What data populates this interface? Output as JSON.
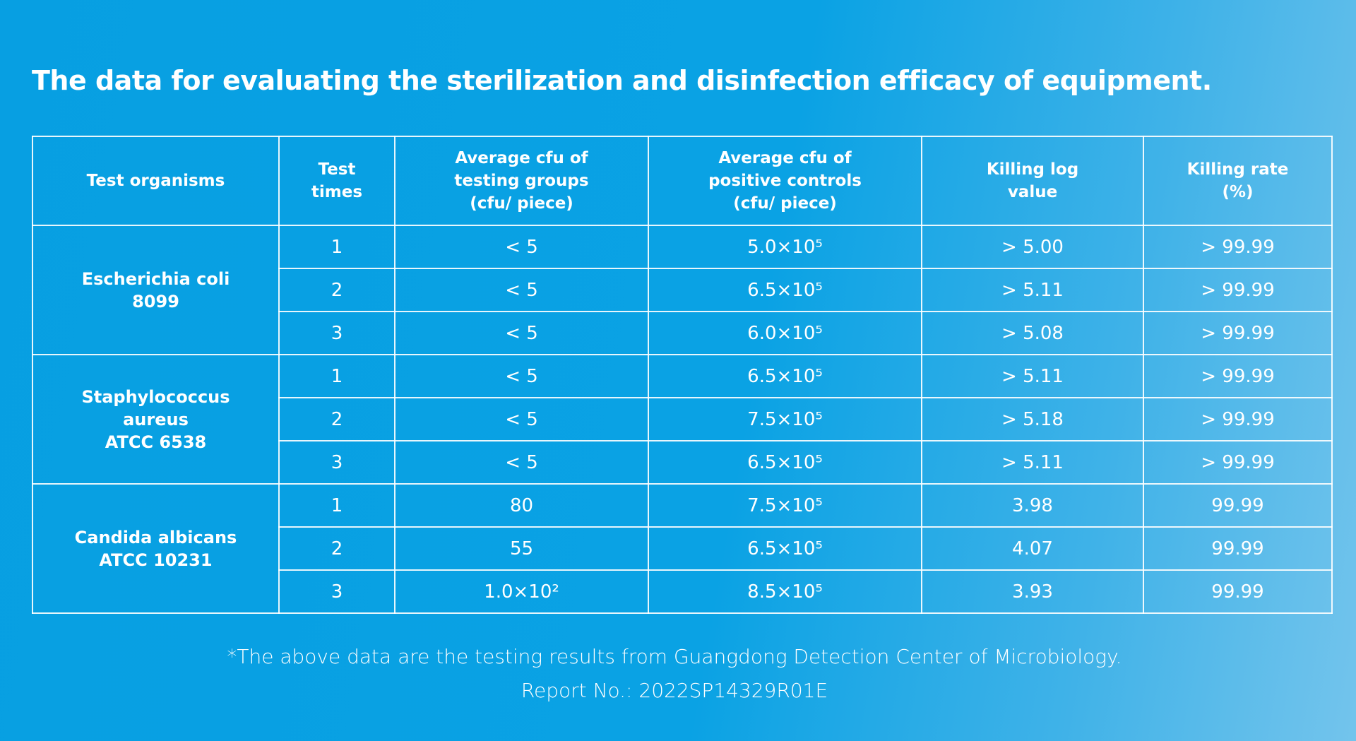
{
  "title": "The data for evaluating the sterilization and disinfection efficacy of equipment.",
  "table": {
    "header": [
      [
        "Test organisms"
      ],
      [
        "Test",
        "times"
      ],
      [
        "Average cfu of",
        "testing groups",
        "(cfu/ piece)"
      ],
      [
        "Average cfu of",
        "positive controls",
        "(cfu/ piece)"
      ],
      [
        "Killing log",
        "value"
      ],
      [
        "Killing rate",
        "(%)"
      ]
    ],
    "groups": [
      {
        "organism": [
          "Escherichia coli",
          "8099"
        ],
        "rows": [
          [
            "1",
            "< 5",
            "5.0×10⁵",
            "> 5.00",
            "> 99.99"
          ],
          [
            "2",
            "< 5",
            "6.5×10⁵",
            "> 5.11",
            "> 99.99"
          ],
          [
            "3",
            "< 5",
            "6.0×10⁵",
            "> 5.08",
            "> 99.99"
          ]
        ]
      },
      {
        "organism": [
          "Staphylococcus",
          "aureus",
          "ATCC 6538"
        ],
        "rows": [
          [
            "1",
            "< 5",
            "6.5×10⁵",
            "> 5.11",
            "> 99.99"
          ],
          [
            "2",
            "< 5",
            "7.5×10⁵",
            "> 5.18",
            "> 99.99"
          ],
          [
            "3",
            "< 5",
            "6.5×10⁵",
            "> 5.11",
            "> 99.99"
          ]
        ]
      },
      {
        "organism": [
          "Candida albicans",
          "ATCC 10231"
        ],
        "rows": [
          [
            "1",
            "80",
            "7.5×10⁵",
            "3.98",
            "99.99"
          ],
          [
            "2",
            "55",
            "6.5×10⁵",
            "4.07",
            "99.99"
          ],
          [
            "3",
            "1.0×10²",
            "8.5×10⁵",
            "3.93",
            "99.99"
          ]
        ]
      }
    ]
  },
  "footnote": [
    "*The above data are the testing results from Guangdong Detection Center of Microbiology.",
    "Report No.: 2022SP14329R01E"
  ]
}
